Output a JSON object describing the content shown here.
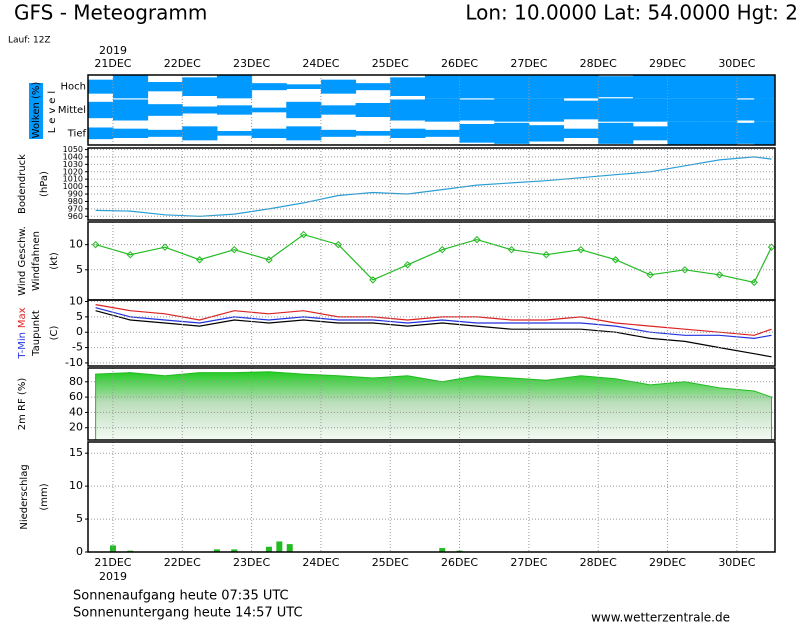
{
  "header": {
    "title": "GFS - Meteogramm",
    "location": "Lon: 10.0000 Lat: 54.0000 Hgt: 2",
    "run": "Lauf: 12Z"
  },
  "year": "2019",
  "footer": {
    "sunrise": "Sonnenaufgang heute 07:35 UTC",
    "sunset": "Sonnenuntergang heute 14:57 UTC",
    "site": "www.wetterzentrale.de"
  },
  "chart_data": [
    {
      "type": "heatmap",
      "ylabel": "Wolken (%)",
      "ylabel2": "Level",
      "xlim": [
        20.64,
        30.55
      ],
      "xticks": [
        {
          "value": 21,
          "label": "21DEC"
        },
        {
          "value": 22,
          "label": "22DEC"
        },
        {
          "value": 23,
          "label": "23DEC"
        },
        {
          "value": 24,
          "label": "24DEC"
        },
        {
          "value": 25,
          "label": "25DEC"
        },
        {
          "value": 26,
          "label": "26DEC"
        },
        {
          "value": 27,
          "label": "27DEC"
        },
        {
          "value": 28,
          "label": "28DEC"
        },
        {
          "value": 29,
          "label": "29DEC"
        },
        {
          "value": 30,
          "label": "30DEC"
        }
      ],
      "x": [
        20.75,
        21.25,
        21.75,
        22.25,
        22.75,
        23.25,
        23.75,
        24.25,
        24.75,
        25.25,
        25.75,
        26.25,
        26.75,
        27.25,
        27.75,
        28.25,
        28.75,
        29.25,
        29.75,
        30.25,
        30.5
      ],
      "color": "#0099ff",
      "series": [
        {
          "name": "Hoch",
          "values": [
            60,
            100,
            40,
            80,
            100,
            30,
            20,
            60,
            30,
            80,
            100,
            100,
            100,
            100,
            100,
            90,
            100,
            100,
            100,
            100,
            100
          ]
        },
        {
          "name": "Mittel",
          "values": [
            70,
            90,
            50,
            30,
            40,
            20,
            70,
            40,
            60,
            90,
            100,
            90,
            100,
            100,
            80,
            100,
            100,
            100,
            100,
            90,
            100
          ]
        },
        {
          "name": "Tief",
          "values": [
            50,
            40,
            30,
            60,
            20,
            40,
            60,
            30,
            20,
            40,
            30,
            80,
            90,
            70,
            40,
            90,
            60,
            100,
            100,
            90,
            100
          ]
        }
      ]
    },
    {
      "type": "line",
      "ylabel": "Bodendruck",
      "yunit": "(hPa)",
      "xlim": [
        20.64,
        30.55
      ],
      "ylim": [
        955,
        1052
      ],
      "yticks": [
        960,
        970,
        980,
        990,
        1000,
        1010,
        1020,
        1030,
        1040,
        1050
      ],
      "grid": true,
      "x": [
        20.75,
        21.25,
        21.75,
        22.25,
        22.75,
        23.25,
        23.75,
        24.25,
        24.75,
        25.25,
        25.75,
        26.25,
        26.75,
        27.25,
        27.75,
        28.25,
        28.75,
        29.25,
        29.75,
        30.25,
        30.5
      ],
      "series": [
        {
          "color": "#2a9fd6",
          "values": [
            968,
            967,
            962,
            960,
            963,
            970,
            978,
            988,
            992,
            990,
            996,
            1002,
            1005,
            1008,
            1012,
            1016,
            1020,
            1028,
            1036,
            1040,
            1037
          ]
        }
      ]
    },
    {
      "type": "line",
      "ylabel2": "Windfahnen",
      "yunit": "(kt)",
      "xlim": [
        20.64,
        30.55
      ],
      "ylim": [
        -1,
        14.5
      ],
      "yticks": [
        5,
        10
      ],
      "grid": true,
      "markers": true,
      "x": [
        20.75,
        21.25,
        21.75,
        22.25,
        22.75,
        23.25,
        23.75,
        24.25,
        24.75,
        25.25,
        25.75,
        26.25,
        26.75,
        27.25,
        27.75,
        28.25,
        28.75,
        29.25,
        29.75,
        30.25,
        30.5
      ],
      "series": [
        {
          "name": "Wind Geschw.",
          "color": "#22bb22",
          "values": [
            10,
            8,
            9.5,
            7,
            9,
            7,
            12,
            10,
            3,
            6,
            9,
            11,
            9,
            8,
            9,
            7,
            4,
            5,
            4,
            2.5,
            9.5
          ]
        }
      ]
    },
    {
      "type": "line",
      "yunit": "(C)",
      "xlim": [
        20.64,
        30.55
      ],
      "ylim": [
        -11,
        10.5
      ],
      "yticks": [
        -10,
        -5,
        0,
        5,
        10
      ],
      "grid": true,
      "x": [
        20.75,
        21.25,
        21.75,
        22.25,
        22.75,
        23.25,
        23.75,
        24.25,
        24.75,
        25.25,
        25.75,
        26.25,
        26.75,
        27.25,
        27.75,
        28.25,
        28.75,
        29.25,
        29.75,
        30.25,
        30.5
      ],
      "series": [
        {
          "name": "T-Min",
          "color": "#2233dd",
          "values": [
            8,
            5,
            4,
            3,
            5,
            4,
            5,
            4,
            4,
            3,
            4,
            3,
            3,
            3,
            3,
            2,
            0,
            -1,
            -1,
            -2,
            -1
          ]
        },
        {
          "name": "Max",
          "color": "#dd2222",
          "values": [
            9,
            7,
            6,
            4,
            7,
            6,
            7,
            5,
            5,
            4,
            5,
            5,
            4,
            4,
            5,
            3,
            2,
            1,
            0,
            -1,
            1
          ]
        },
        {
          "name": "Taupunkt",
          "color": "#000000",
          "values": [
            7,
            4,
            3,
            2,
            4,
            3,
            4,
            3,
            3,
            2,
            3,
            2,
            1,
            1,
            1,
            0,
            -2,
            -3,
            -5,
            -7,
            -8
          ]
        }
      ]
    },
    {
      "type": "area",
      "xlim": [
        20.64,
        30.55
      ],
      "ylim": [
        4,
        98
      ],
      "yticks": [
        20,
        40,
        60,
        80
      ],
      "grid": true,
      "x": [
        20.75,
        21.25,
        21.75,
        22.25,
        22.75,
        23.25,
        23.75,
        24.25,
        24.75,
        25.25,
        25.75,
        26.25,
        26.75,
        27.25,
        27.75,
        28.25,
        28.75,
        29.25,
        29.75,
        30.25,
        30.5
      ],
      "series": [
        {
          "name": "2m RF (%)",
          "color": "#22bb22",
          "values": [
            90,
            92,
            88,
            92,
            92,
            93,
            90,
            88,
            85,
            88,
            80,
            88,
            85,
            82,
            88,
            84,
            76,
            80,
            72,
            68,
            60
          ]
        }
      ]
    },
    {
      "type": "bar",
      "ylabel": "Niederschlag",
      "yunit": "(mm)",
      "xlim": [
        20.64,
        30.55
      ],
      "xticks": [
        {
          "value": 21,
          "label": "21DEC"
        },
        {
          "value": 22,
          "label": "22DEC"
        },
        {
          "value": 23,
          "label": "23DEC"
        },
        {
          "value": 24,
          "label": "24DEC"
        },
        {
          "value": 25,
          "label": "25DEC"
        },
        {
          "value": 26,
          "label": "26DEC"
        },
        {
          "value": 27,
          "label": "27DEC"
        },
        {
          "value": 28,
          "label": "28DEC"
        },
        {
          "value": 29,
          "label": "29DEC"
        },
        {
          "value": 30,
          "label": "30DEC"
        }
      ],
      "ylim": [
        0,
        16.7
      ],
      "yticks": [
        0,
        5,
        10,
        15
      ],
      "grid": true,
      "x": [
        21.0,
        21.25,
        22.5,
        22.75,
        23.25,
        23.4,
        23.55,
        25.75,
        26.0
      ],
      "color": "#22bb22",
      "values": [
        1.0,
        0.2,
        0.4,
        0.4,
        0.8,
        1.6,
        1.2,
        0.6,
        0.2
      ]
    }
  ]
}
